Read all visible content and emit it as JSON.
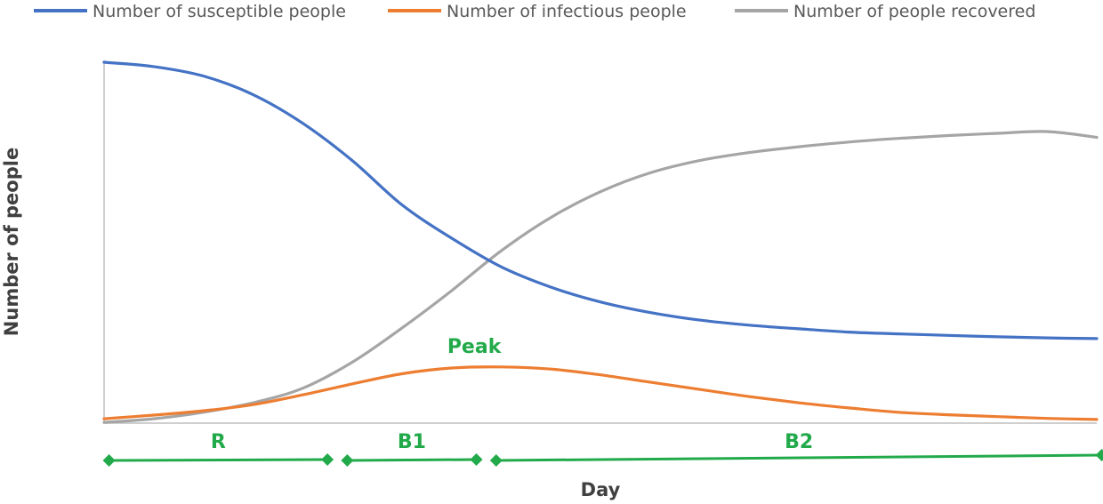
{
  "chart_data": {
    "type": "line",
    "title": "",
    "xlabel": "Day",
    "ylabel": "Number of people",
    "xlim": [
      0,
      100
    ],
    "ylim": [
      0,
      100
    ],
    "grid": false,
    "legend_position": "top",
    "x": [
      0,
      5,
      10,
      15,
      20,
      25,
      30,
      35,
      40,
      45,
      50,
      55,
      60,
      65,
      70,
      75,
      80,
      85,
      90,
      95,
      100
    ],
    "series": [
      {
        "name": "Number of susceptible people",
        "color": "#4472C4",
        "values": [
          99.5,
          98.3,
          95.7,
          90.6,
          82.7,
          72.4,
          60.2,
          51.0,
          43.1,
          37.5,
          33.4,
          30.5,
          28.4,
          27.0,
          26.0,
          25.1,
          24.6,
          24.2,
          23.8,
          23.5,
          23.3
        ]
      },
      {
        "name": "Number of infectious people",
        "color": "#ED7D31",
        "values": [
          1.2,
          2.2,
          3.4,
          5.1,
          7.8,
          10.8,
          13.6,
          15.2,
          15.5,
          14.9,
          13.3,
          11.3,
          9.3,
          7.3,
          5.6,
          4.2,
          3.0,
          2.3,
          1.8,
          1.3,
          1.0
        ]
      },
      {
        "name": "Number of people recovered",
        "color": "#A5A5A5",
        "values": [
          0.2,
          1.2,
          3.0,
          5.6,
          9.6,
          16.8,
          26.2,
          36.5,
          47.5,
          56.7,
          63.8,
          69.0,
          72.4,
          74.6,
          76.2,
          77.5,
          78.5,
          79.3,
          79.9,
          80.4,
          78.8
        ]
      }
    ],
    "annotations": {
      "color": "#22AA4A",
      "peak": {
        "label": "Peak",
        "x": 38,
        "y": 15.5
      },
      "phases": [
        {
          "label": "R",
          "start": 0.5,
          "end": 22.5
        },
        {
          "label": "B1",
          "start": 24.5,
          "end": 37.5
        },
        {
          "label": "B2",
          "start": 39.5,
          "end": 100.5
        }
      ]
    }
  }
}
